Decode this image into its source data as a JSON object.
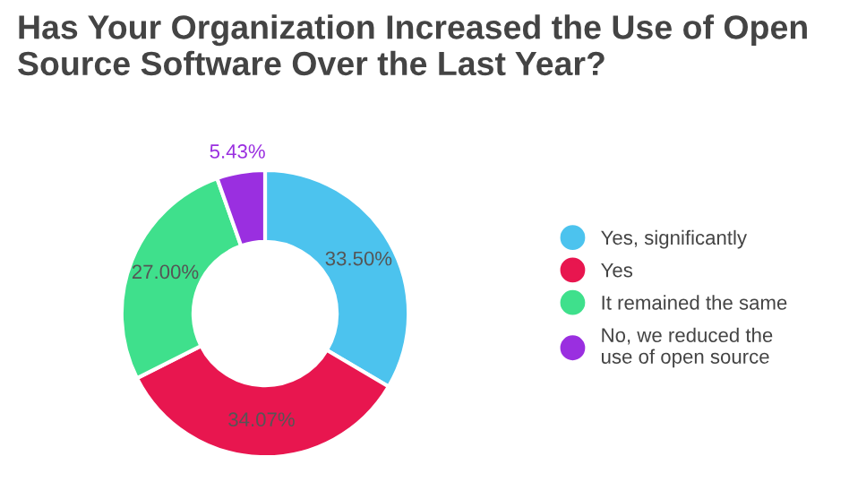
{
  "chart_data": {
    "type": "donut",
    "title": "Has Your Organization Increased the Use of Open Source Software Over the Last Year?",
    "categories": [
      "Yes, significantly",
      "Yes",
      "It remained the same",
      "No, we reduced the use of open source"
    ],
    "values": [
      33.5,
      34.07,
      27.0,
      5.43
    ],
    "value_labels": [
      "33.50%",
      "34.07%",
      "27.00%",
      "5.43%"
    ],
    "colors": [
      "#4cc3ee",
      "#e8164f",
      "#3fe08c",
      "#9a2fe0"
    ],
    "legend": "right"
  }
}
